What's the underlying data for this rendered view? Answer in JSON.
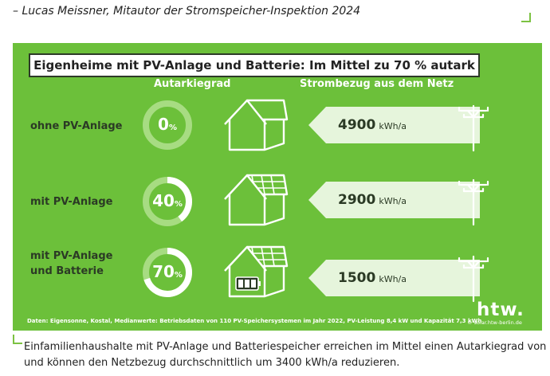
{
  "quote": "– Lucas Meissner, Mitautor der Stromspeicher-Inspektion 2024",
  "infographic": {
    "title": "Eigenheime mit PV-Anlage und Batterie: Im Mittel zu 70 % autark",
    "col_autarky": "Autarkiegrad",
    "col_grid": "Strombezug aus dem Netz",
    "rows": [
      {
        "label_line1": "ohne PV-Anlage",
        "label_line2": "",
        "autarky_value": "0",
        "autarky_pct": "%",
        "autarky_fraction": 0.0,
        "grid_value": "4900",
        "grid_unit": "kWh/a"
      },
      {
        "label_line1": "mit PV-Anlage",
        "label_line2": "",
        "autarky_value": "40",
        "autarky_pct": "%",
        "autarky_fraction": 0.4,
        "grid_value": "2900",
        "grid_unit": "kWh/a"
      },
      {
        "label_line1": "mit PV-Anlage",
        "label_line2": "und Batterie",
        "autarky_value": "70",
        "autarky_pct": "%",
        "autarky_fraction": 0.7,
        "grid_value": "1500",
        "grid_unit": "kWh/a"
      }
    ],
    "source": "Daten: Eigensonne, Kostal, Medianwerte: Betriebsdaten von 110 PV-Speichersystemen im Jahr 2022, PV-Leistung 8,4 kW und Kapazität 7,3 kWh",
    "logo": "htw.",
    "copyright": "© solar.htw-berlin.de"
  },
  "caption": {
    "line1": "Einfamilienhaushalte mit PV-Anlage und Batteriespeicher erreichen im Mittel einen Autarkiegrad von 70 %",
    "line2": "und können den Netzbezug durchschnittlich um 3400 kWh/a reduzieren."
  },
  "colors": {
    "background_green": "#6cc03a",
    "ring_track": "#a7dc82",
    "ring_fill": "#ffffff",
    "arrow_fill": "#e6f5dc",
    "dark": "#2b3a25",
    "accent": "#7cc242"
  },
  "icons": {
    "house": "house-icon",
    "solar_house": "solar-house-icon",
    "battery_house": "battery-house-icon",
    "power_pole": "power-pole-icon"
  }
}
